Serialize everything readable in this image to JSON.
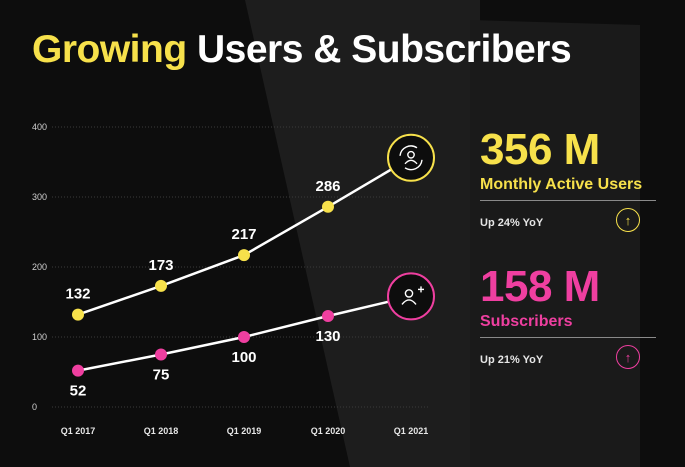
{
  "title": {
    "accent": "Growing",
    "rest": "Users & Subscribers"
  },
  "kpis": [
    {
      "value": "356 M",
      "label": "Monthly Active Users",
      "yoy": "Up 24% YoY",
      "color": "#f7e14b",
      "icon": "user-refresh-icon",
      "arrow": "↑"
    },
    {
      "value": "158 M",
      "label": "Subscribers",
      "yoy": "Up 21% YoY",
      "color": "#ef3fa0",
      "icon": "user-add-icon",
      "arrow": "↑"
    }
  ],
  "chart_data": {
    "type": "line",
    "categories": [
      "Q1 2017",
      "Q1 2018",
      "Q1 2019",
      "Q1 2020",
      "Q1 2021"
    ],
    "yticks": [
      0,
      100,
      200,
      300,
      400
    ],
    "ylim": [
      0,
      400
    ],
    "grid": true,
    "series": [
      {
        "name": "Monthly Active Users",
        "values": [
          132,
          173,
          217,
          286,
          356
        ],
        "labels": [
          "132",
          "173",
          "217",
          "286",
          ""
        ],
        "color": "#f7e14b"
      },
      {
        "name": "Subscribers",
        "values": [
          52,
          75,
          100,
          130,
          158
        ],
        "labels": [
          "52",
          "75",
          "100",
          "130",
          ""
        ],
        "color": "#ef3fa0"
      }
    ]
  }
}
